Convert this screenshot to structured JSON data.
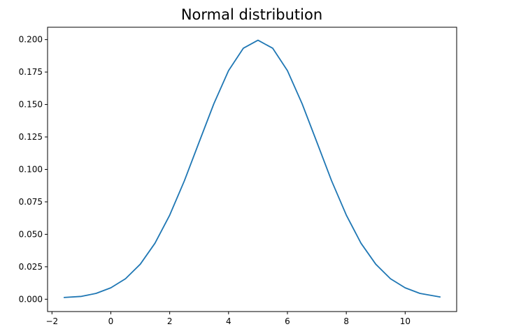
{
  "chart_data": {
    "type": "line",
    "title": "Normal distribution",
    "xlabel": "",
    "ylabel": "",
    "xlim": [
      -2.15,
      11.75
    ],
    "ylim": [
      -0.0095,
      0.2095
    ],
    "x_ticks": [
      -2,
      0,
      2,
      4,
      6,
      8,
      10
    ],
    "x_tick_labels": [
      "−2",
      "0",
      "2",
      "4",
      "6",
      "8",
      "10"
    ],
    "y_ticks": [
      0.0,
      0.025,
      0.05,
      0.075,
      0.1,
      0.125,
      0.15,
      0.175,
      0.2
    ],
    "y_tick_labels": [
      "0.000",
      "0.025",
      "0.050",
      "0.075",
      "0.100",
      "0.125",
      "0.150",
      "0.175",
      "0.200"
    ],
    "grid": false,
    "legend": "none",
    "series": [
      {
        "color": "#1f77b4",
        "x": [
          -1.6,
          -1.0,
          -0.5,
          0.0,
          0.5,
          1.0,
          1.5,
          2.0,
          2.5,
          3.0,
          3.5,
          4.0,
          4.5,
          5.0,
          5.5,
          6.0,
          6.5,
          7.0,
          7.5,
          8.0,
          8.5,
          9.0,
          9.5,
          10.0,
          10.5,
          11.2
        ],
        "y": [
          0.0013,
          0.0022,
          0.0045,
          0.0088,
          0.0158,
          0.027,
          0.0431,
          0.0648,
          0.0913,
          0.121,
          0.1506,
          0.1761,
          0.1933,
          0.1995,
          0.1933,
          0.1761,
          0.1506,
          0.121,
          0.0913,
          0.0648,
          0.0431,
          0.027,
          0.0158,
          0.0088,
          0.0045,
          0.0017
        ]
      }
    ]
  }
}
